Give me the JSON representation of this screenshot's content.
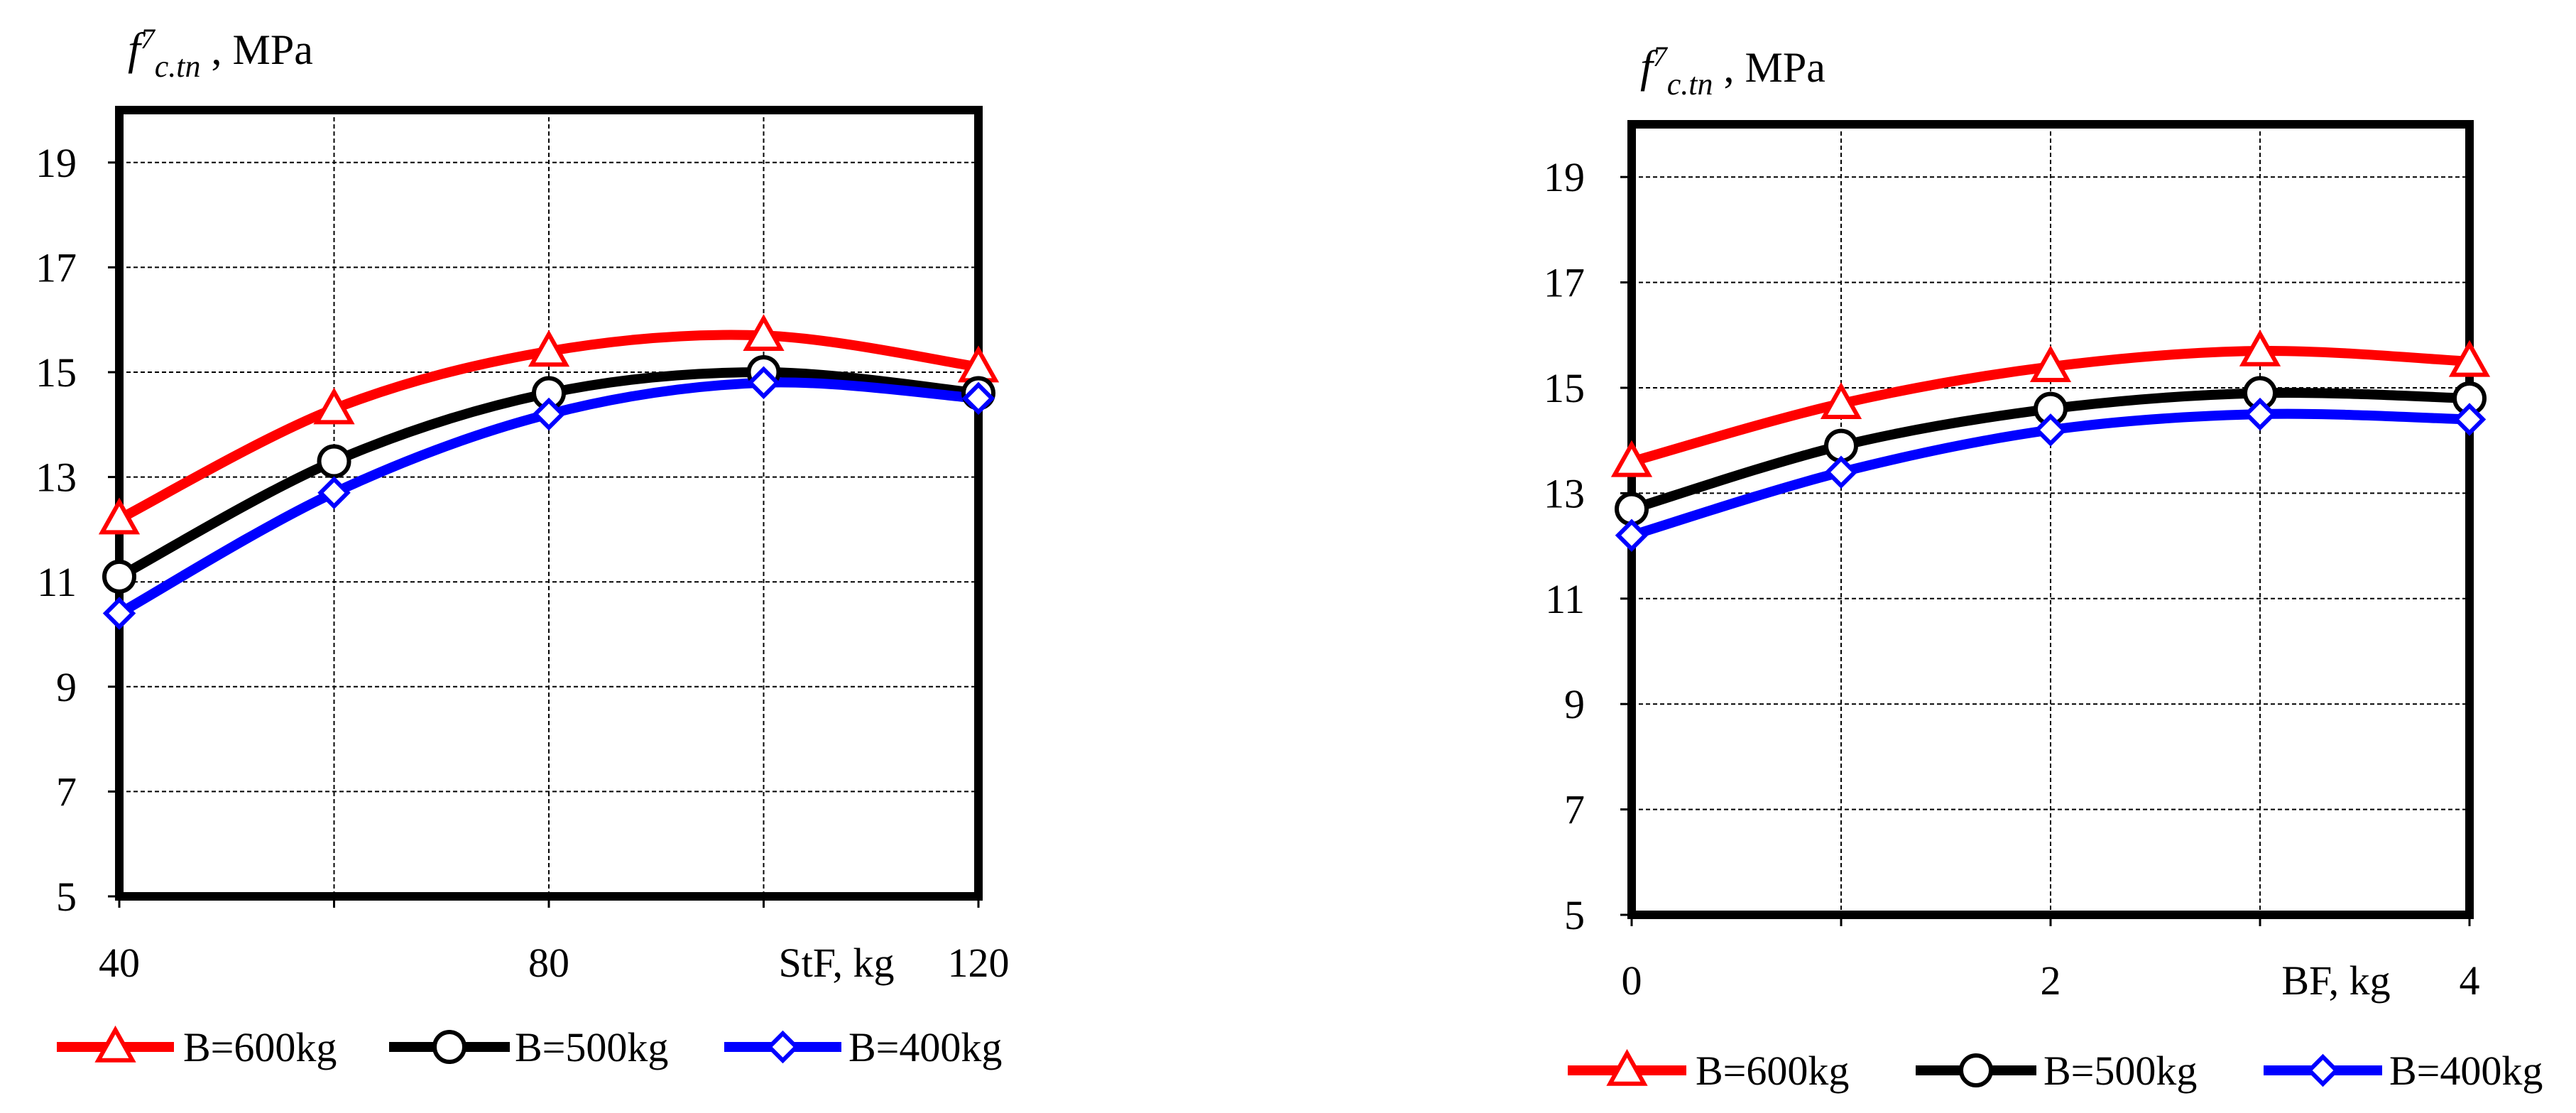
{
  "chart_data": [
    {
      "type": "line",
      "panel": "left",
      "y_title": {
        "symbol": "f",
        "superscript": "7",
        "subscript": "c.tn",
        "unit": ", MPa"
      },
      "xlabel": "StF, kg",
      "x_ticks": [
        40,
        80,
        120
      ],
      "x_grid": [
        40,
        60,
        80,
        100,
        120
      ],
      "xlim": [
        40,
        120
      ],
      "ylim": [
        5,
        20
      ],
      "y_ticks": [
        5,
        7,
        9,
        11,
        13,
        15,
        17,
        19
      ],
      "x": [
        40,
        60,
        80,
        100,
        120
      ],
      "series": [
        {
          "name": "B=600kg",
          "marker": "triangle",
          "color": "#ff0000",
          "values": [
            12.2,
            14.3,
            15.4,
            15.7,
            15.1
          ]
        },
        {
          "name": "B=500kg",
          "marker": "circle",
          "color": "#000000",
          "values": [
            11.1,
            13.3,
            14.6,
            15.0,
            14.6
          ]
        },
        {
          "name": "B=400kg",
          "marker": "diamond",
          "color": "#0000ff",
          "values": [
            10.4,
            12.7,
            14.2,
            14.8,
            14.5
          ]
        }
      ]
    },
    {
      "type": "line",
      "panel": "right",
      "y_title": {
        "symbol": "f",
        "superscript": "7",
        "subscript": "c.tn",
        "unit": ", MPa"
      },
      "xlabel": "BF, kg",
      "x_ticks": [
        0,
        2,
        4
      ],
      "x_grid": [
        0,
        1,
        2,
        3,
        4
      ],
      "xlim": [
        0,
        4
      ],
      "ylim": [
        5,
        20
      ],
      "y_ticks": [
        5,
        7,
        9,
        11,
        13,
        15,
        17,
        19
      ],
      "x": [
        0,
        1,
        2,
        3,
        4
      ],
      "series": [
        {
          "name": "B=600kg",
          "marker": "triangle",
          "color": "#ff0000",
          "values": [
            13.6,
            14.7,
            15.4,
            15.7,
            15.5
          ]
        },
        {
          "name": "B=500kg",
          "marker": "circle",
          "color": "#000000",
          "values": [
            12.7,
            13.9,
            14.6,
            14.9,
            14.8
          ]
        },
        {
          "name": "B=400kg",
          "marker": "diamond",
          "color": "#0000ff",
          "values": [
            12.2,
            13.4,
            14.2,
            14.5,
            14.4
          ]
        }
      ]
    }
  ]
}
